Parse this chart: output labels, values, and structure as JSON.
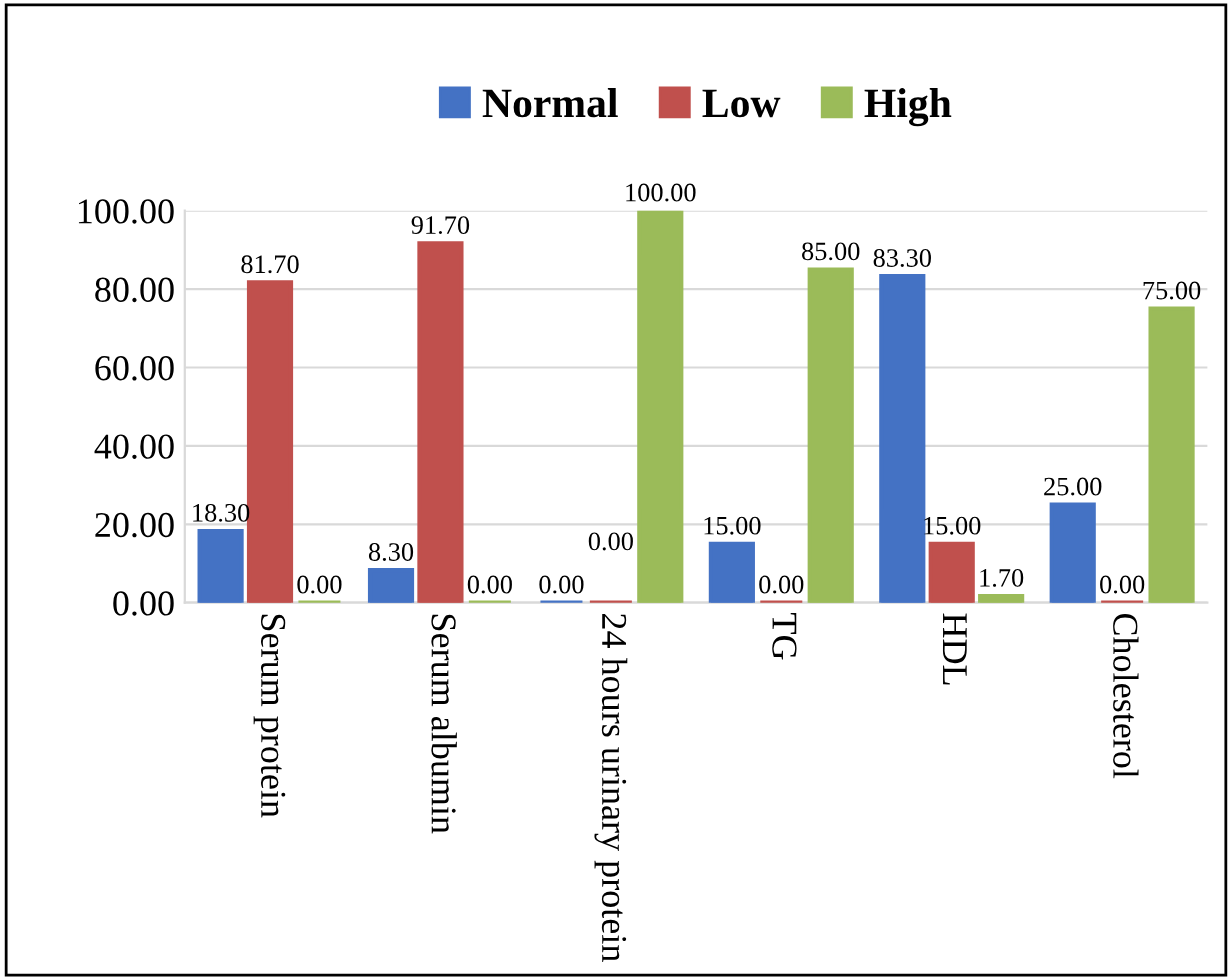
{
  "chart_data": {
    "type": "bar",
    "categories": [
      "Serum protein",
      "Serum albumin",
      "24 hours urinary protein",
      "TG",
      "HDL",
      "Cholesterol"
    ],
    "series": [
      {
        "name": "Normal",
        "color": "#4472c4",
        "values": [
          18.3,
          8.3,
          0,
          15,
          83.3,
          25
        ],
        "value_labels": [
          "18.30",
          "8.30",
          "0.00",
          "15.00",
          "83.30",
          "25.00"
        ]
      },
      {
        "name": "Low",
        "color": "#c0504d",
        "values": [
          81.7,
          91.7,
          0,
          0,
          15,
          0
        ],
        "value_labels": [
          "81.70",
          "91.70",
          "0.00",
          "0.00",
          "15.00",
          "0.00"
        ]
      },
      {
        "name": "High",
        "color": "#9bbb59",
        "values": [
          0,
          0,
          100,
          85,
          1.7,
          75
        ],
        "value_labels": [
          "0.00",
          "0.00",
          "100.00",
          "85.00",
          "1.70",
          "75.00"
        ]
      }
    ],
    "ylim": [
      0,
      100
    ],
    "yticks": [
      {
        "value": 0,
        "label": "0.00"
      },
      {
        "value": 20,
        "label": "20.00"
      },
      {
        "value": 40,
        "label": "40.00"
      },
      {
        "value": 60,
        "label": "60.00"
      },
      {
        "value": 80,
        "label": "80.00"
      },
      {
        "value": 100,
        "label": "100.00"
      }
    ],
    "grid": "y",
    "legend": "top"
  }
}
